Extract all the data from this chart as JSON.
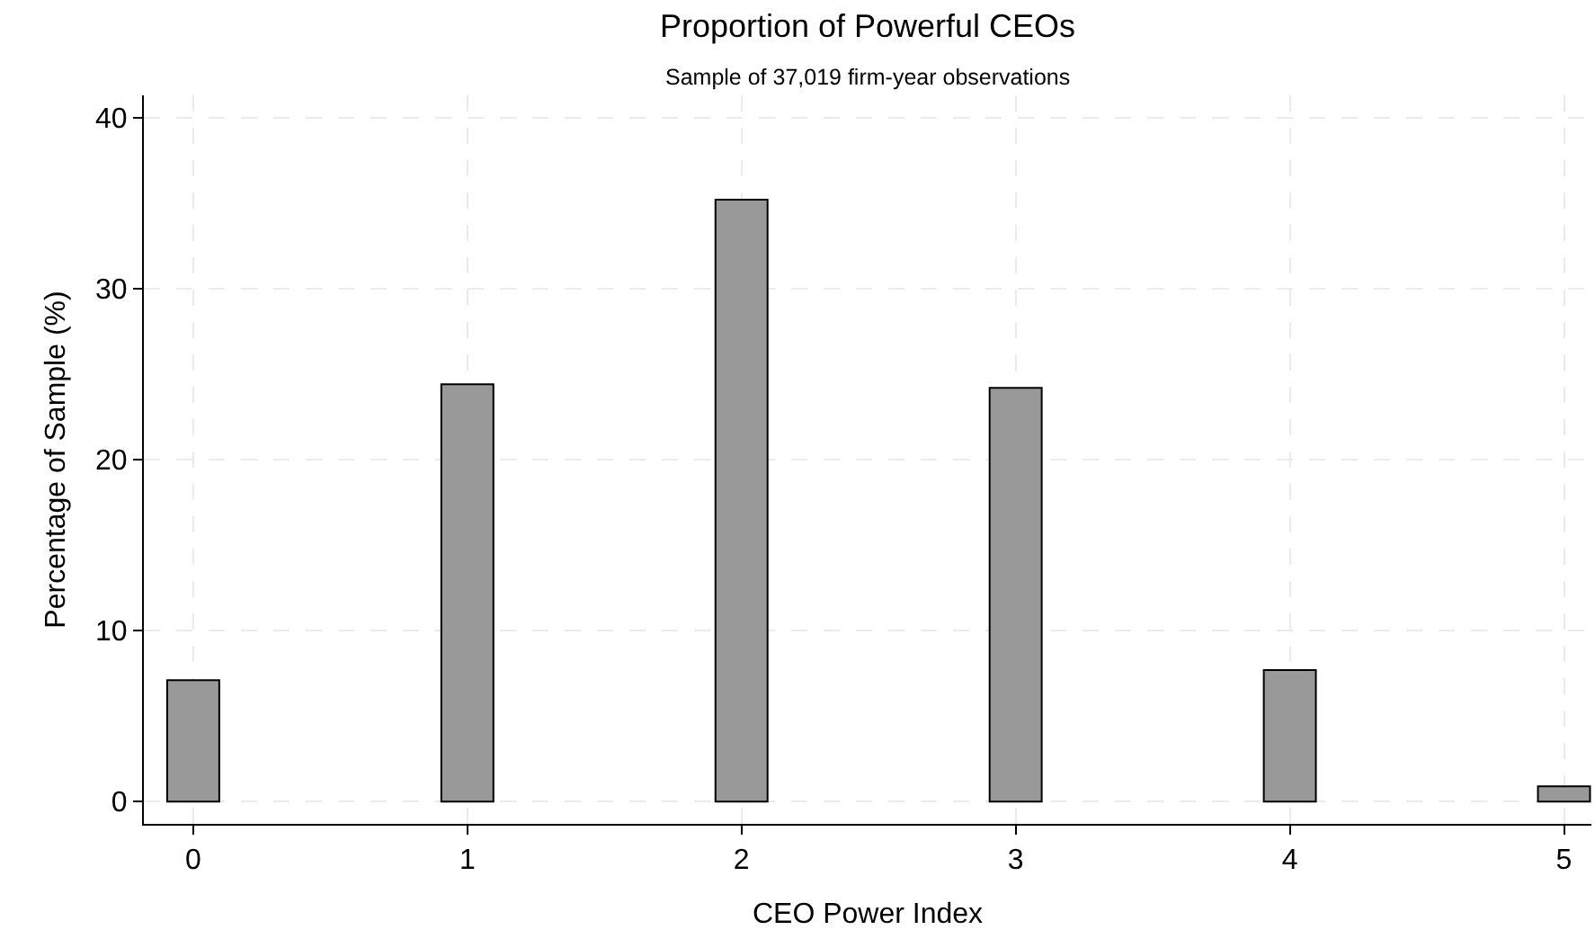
{
  "chart_data": {
    "type": "bar",
    "title": "Proportion of Powerful CEOs",
    "subtitle": "Sample of 37,019 firm-year observations",
    "xlabel": "CEO Power Index",
    "ylabel": "Percentage of Sample (%)",
    "x": [
      0,
      1,
      2,
      3,
      4,
      5
    ],
    "values": [
      7.1,
      24.4,
      35.2,
      24.2,
      7.7,
      0.9
    ],
    "color": "#999999",
    "xlim": [
      -0.18,
      5.1
    ],
    "xticks": [
      0,
      1,
      2,
      3,
      4,
      5
    ],
    "ylim": [
      -1.3,
      41.3
    ],
    "yticks": [
      0,
      10,
      20,
      30,
      40
    ],
    "grid": true
  }
}
